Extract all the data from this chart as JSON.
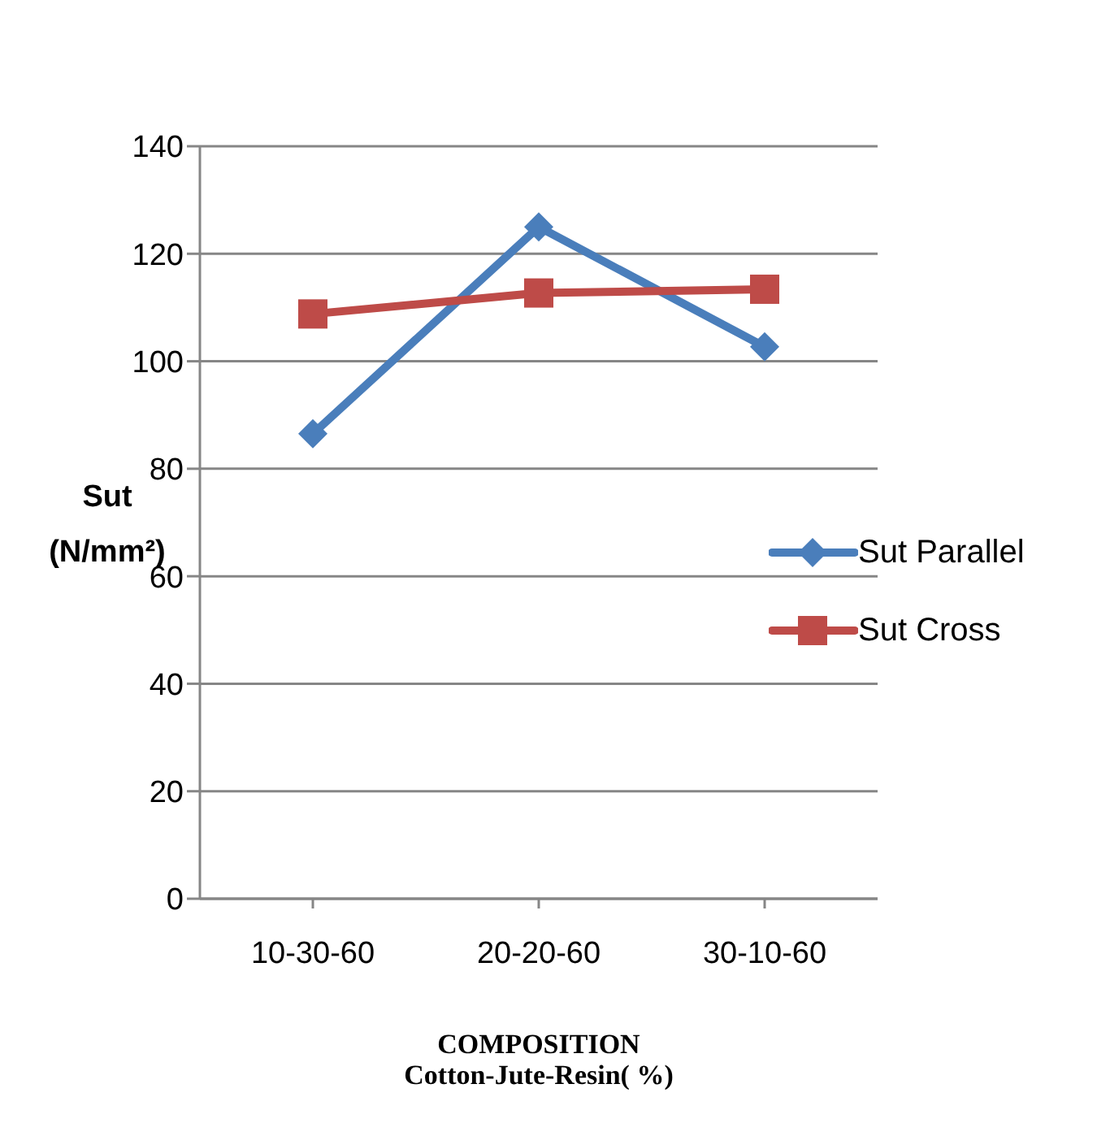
{
  "chart_data": {
    "type": "line",
    "xlabel": "COMPOSITION\nCotton-Jute-Resin( %)",
    "ylabel": "Sut\n(N/mm²)",
    "categories": [
      "10-30-60",
      "20-20-60",
      "30-10-60"
    ],
    "series": [
      {
        "name": "Sut Parallel",
        "color": "#4a7ebb",
        "marker": "diamond",
        "values": [
          86.5,
          125,
          102.7
        ]
      },
      {
        "name": "Sut Cross",
        "color": "#be4b48",
        "marker": "square",
        "values": [
          108.8,
          112.7,
          113.4
        ]
      }
    ],
    "ylim": [
      0,
      140
    ],
    "yticks": [
      0,
      20,
      40,
      60,
      80,
      100,
      120,
      140
    ],
    "grid": "y",
    "legend": "right",
    "line_style": "solid"
  }
}
